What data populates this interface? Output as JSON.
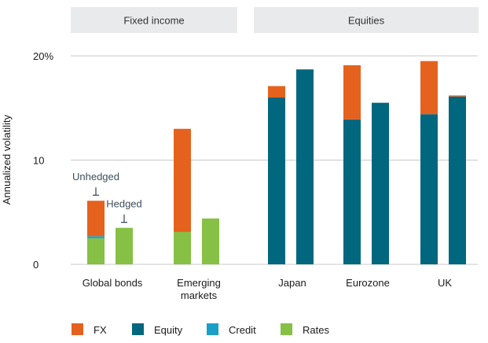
{
  "chart_data": {
    "type": "bar",
    "stacked": true,
    "ylabel": "Annualized volatility",
    "ylim": [
      0,
      20
    ],
    "y_ticks": [
      {
        "value": 0,
        "label": "0"
      },
      {
        "value": 10,
        "label": "10"
      },
      {
        "value": 20,
        "label": "20%"
      }
    ],
    "grid": true,
    "panels": [
      {
        "label": "Fixed income",
        "color": "#e8eaeb"
      },
      {
        "label": "Equities",
        "color": "#e8eaeb"
      }
    ],
    "groups": [
      {
        "label": "Global bonds",
        "panel": 0
      },
      {
        "label": "Emerging\nmarkets",
        "panel": 0
      },
      {
        "label": "Japan",
        "panel": 1
      },
      {
        "label": "Eurozone",
        "panel": 1
      },
      {
        "label": "UK",
        "panel": 1
      }
    ],
    "series": [
      {
        "name": "Rates",
        "color": "#86c044"
      },
      {
        "name": "Credit",
        "color": "#1aa0c8"
      },
      {
        "name": "Equity",
        "color": "#00677f"
      },
      {
        "name": "FX",
        "color": "#e5621e"
      }
    ],
    "bars": [
      {
        "group": 0,
        "variant": "Unhedged",
        "segments": {
          "Rates": 2.5,
          "Credit": 0.2,
          "Equity": 0,
          "FX": 3.4
        }
      },
      {
        "group": 0,
        "variant": "Hedged",
        "segments": {
          "Rates": 3.5,
          "Credit": 0,
          "Equity": 0,
          "FX": 0
        }
      },
      {
        "group": 1,
        "variant": "Unhedged",
        "segments": {
          "Rates": 3.1,
          "Credit": 0,
          "Equity": 0,
          "FX": 9.9
        }
      },
      {
        "group": 1,
        "variant": "Hedged",
        "segments": {
          "Rates": 4.4,
          "Credit": 0,
          "Equity": 0,
          "FX": 0
        }
      },
      {
        "group": 2,
        "variant": "Unhedged",
        "segments": {
          "Rates": 0,
          "Credit": 0,
          "Equity": 16.0,
          "FX": 1.1
        }
      },
      {
        "group": 2,
        "variant": "Hedged",
        "segments": {
          "Rates": 0,
          "Credit": 0,
          "Equity": 18.7,
          "FX": 0
        }
      },
      {
        "group": 3,
        "variant": "Unhedged",
        "segments": {
          "Rates": 0,
          "Credit": 0,
          "Equity": 13.9,
          "FX": 5.2
        }
      },
      {
        "group": 3,
        "variant": "Hedged",
        "segments": {
          "Rates": 0,
          "Credit": 0,
          "Equity": 15.5,
          "FX": 0
        }
      },
      {
        "group": 4,
        "variant": "Unhedged",
        "segments": {
          "Rates": 0,
          "Credit": 0,
          "Equity": 14.4,
          "FX": 5.1
        }
      },
      {
        "group": 4,
        "variant": "Hedged",
        "segments": {
          "Rates": 0,
          "Credit": 0,
          "Equity": 16.1,
          "FX": 0.1
        }
      }
    ],
    "annotations": [
      {
        "text": "Unhedged",
        "bar": 0
      },
      {
        "text": "Hedged",
        "bar": 1
      }
    ],
    "legend": {
      "placement": "bottom",
      "items": [
        {
          "name": "FX",
          "color": "#e5621e"
        },
        {
          "name": "Equity",
          "color": "#00677f"
        },
        {
          "name": "Credit",
          "color": "#1aa0c8"
        },
        {
          "name": "Rates",
          "color": "#86c044"
        }
      ]
    }
  }
}
